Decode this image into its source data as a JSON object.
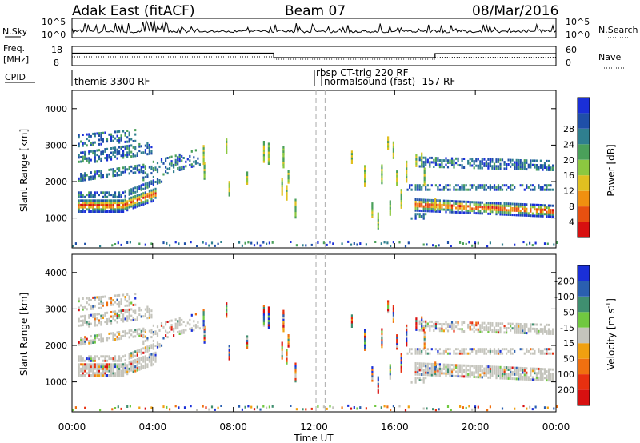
{
  "header": {
    "station": "Adak East (fitACF)",
    "beam": "Beam 07",
    "date": "08/Mar/2016"
  },
  "labels": {
    "nsky": "N.Sky",
    "nsearch": "N.Search",
    "freq": "Freq.",
    "mhz": "[MHz]",
    "nave": "Nave",
    "cpid": "CPID",
    "slant_range": "Slant Range [km]",
    "time_ut": "Time UT",
    "power_title": "Power [dB]",
    "velocity_title": "Velocity [m s",
    "velocity_exp": "-1",
    "velocity_close": "]"
  },
  "noise_axis": {
    "top": "10^5",
    "bottom": "10^0"
  },
  "freq_axis": {
    "top": "18",
    "bottom": "8"
  },
  "nave_axis": {
    "top": "60",
    "bottom": "0"
  },
  "cpid_segments": [
    "themis 3300 RF",
    "rbsp CT-trig 220 RF",
    "normalsound (fast) -157 RF"
  ],
  "colors": {
    "power": [
      "#1a2fd8",
      "#1f4fa8",
      "#2f7f8f",
      "#4aa05a",
      "#8cc840",
      "#e0c020",
      "#f09010",
      "#e85010",
      "#d81010"
    ],
    "velocity": [
      "#1a2fd8",
      "#2a5fb0",
      "#3f8f70",
      "#70c840",
      "#c4c4bc",
      "#f0a010",
      "#f07010",
      "#e83010",
      "#d81010"
    ]
  },
  "chart_data": [
    {
      "type": "heatmap",
      "title": "Power",
      "xlabel": "",
      "ylabel": "Slant Range [km]",
      "x_ticks": [
        "00:00",
        "04:00",
        "08:00",
        "12:00",
        "16:00",
        "20:00",
        "00:00"
      ],
      "x_range_hours": [
        0,
        24
      ],
      "y_ticks": [
        1000,
        2000,
        3000,
        4000
      ],
      "ylim": [
        180,
        4500
      ],
      "colorbar_label": "Power [dB]",
      "colorbar_ticks": [
        4,
        8,
        12,
        16,
        20,
        24,
        28
      ]
    },
    {
      "type": "heatmap",
      "title": "Velocity",
      "xlabel": "Time UT",
      "ylabel": "Slant Range [km]",
      "x_ticks": [
        "00:00",
        "04:00",
        "08:00",
        "12:00",
        "16:00",
        "20:00",
        "00:00"
      ],
      "x_range_hours": [
        0,
        24
      ],
      "y_ticks": [
        1000,
        2000,
        3000,
        4000
      ],
      "ylim": [
        180,
        4500
      ],
      "colorbar_label": "Velocity [m s-1]",
      "colorbar_ticks": [
        -200,
        -100,
        -50,
        -15,
        15,
        50,
        100,
        200
      ]
    }
  ]
}
